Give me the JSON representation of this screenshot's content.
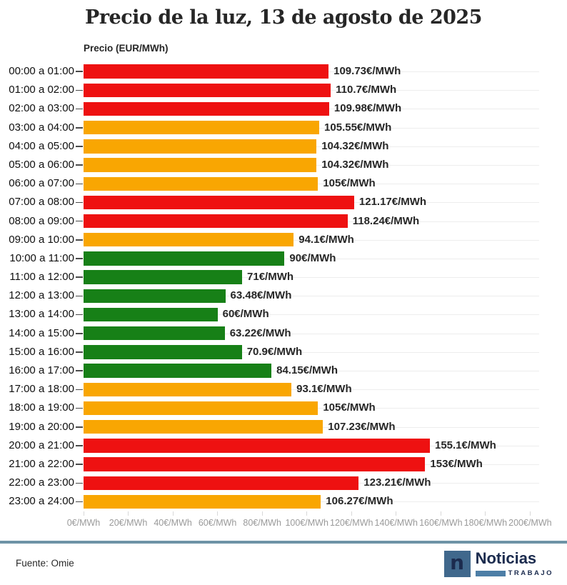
{
  "title": "Precio de la luz, 13 de agosto de 2025",
  "axis_title": "Precio (EUR/MWh)",
  "footer": {
    "source": "Fuente: Omie"
  },
  "logo": {
    "letter": "n",
    "name": "Noticias",
    "sub": "TRABAJO"
  },
  "palette": {
    "red": "#ee1111",
    "orange": "#f9a602",
    "green": "#178017",
    "divider": "#6e93a6",
    "navy": "#1b2b4e",
    "steel": "#40688c"
  },
  "chart_data": {
    "type": "bar",
    "orientation": "horizontal",
    "title": "Precio de la luz, 13 de agosto de 2025",
    "xlabel": "Precio (EUR/MWh)",
    "xlim": [
      0,
      200
    ],
    "grid": "horizontal-row-lines",
    "source": "Fuente: Omie",
    "categories": [
      "00:00 a 01:00",
      "01:00 a 02:00",
      "02:00 a 03:00",
      "03:00 a 04:00",
      "04:00 a 05:00",
      "05:00 a 06:00",
      "06:00 a 07:00",
      "07:00 a 08:00",
      "08:00 a 09:00",
      "09:00 a 10:00",
      "10:00 a 11:00",
      "11:00 a 12:00",
      "12:00 a 13:00",
      "13:00 a 14:00",
      "14:00 a 15:00",
      "15:00 a 16:00",
      "16:00 a 17:00",
      "17:00 a 18:00",
      "18:00 a 19:00",
      "19:00 a 20:00",
      "20:00 a 21:00",
      "21:00 a 22:00",
      "22:00 a 23:00",
      "23:00 a 24:00"
    ],
    "values": [
      109.73,
      110.7,
      109.98,
      105.55,
      104.32,
      104.32,
      105,
      121.17,
      118.24,
      94.1,
      90,
      71,
      63.48,
      60,
      63.22,
      70.9,
      84.15,
      93.1,
      105,
      107.23,
      155.1,
      153,
      123.21,
      106.27
    ],
    "value_labels": [
      "109.73€/MWh",
      "110.7€/MWh",
      "109.98€/MWh",
      "105.55€/MWh",
      "104.32€/MWh",
      "104.32€/MWh",
      "105€/MWh",
      "121.17€/MWh",
      "118.24€/MWh",
      "94.1€/MWh",
      "90€/MWh",
      "71€/MWh",
      "63.48€/MWh",
      "60€/MWh",
      "63.22€/MWh",
      "70.9€/MWh",
      "84.15€/MWh",
      "93.1€/MWh",
      "105€/MWh",
      "107.23€/MWh",
      "155.1€/MWh",
      "153€/MWh",
      "123.21€/MWh",
      "106.27€/MWh"
    ],
    "bar_colors": [
      "red",
      "red",
      "red",
      "orange",
      "orange",
      "orange",
      "orange",
      "red",
      "red",
      "orange",
      "green",
      "green",
      "green",
      "green",
      "green",
      "green",
      "green",
      "orange",
      "orange",
      "orange",
      "red",
      "red",
      "red",
      "orange"
    ],
    "x_ticks": [
      0,
      20,
      40,
      60,
      80,
      100,
      120,
      140,
      160,
      180,
      200
    ],
    "x_tick_labels": [
      "0€/MWh",
      "20€/MWh",
      "40€/MWh",
      "60€/MWh",
      "80€/MWh",
      "100€/MWh",
      "120€/MWh",
      "140€/MWh",
      "160€/MWh",
      "180€/MWh",
      "200€/MWh"
    ]
  }
}
